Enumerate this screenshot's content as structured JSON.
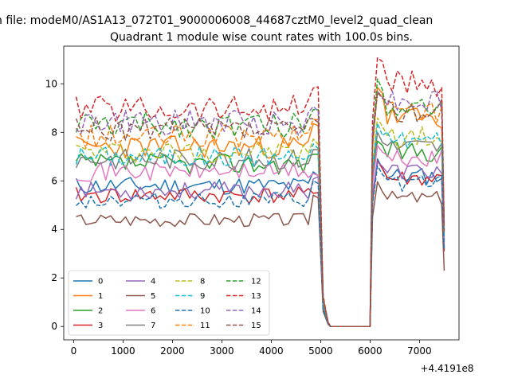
{
  "figure": {
    "suptitle": "n file: modeM0/AS1A13_072T01_9000006008_44687cztM0_level2_quad_clean",
    "title": "Quadrant 1 module wise count rates with 100.0s bins.",
    "x_offset_label": "+4.4191e8"
  },
  "chart_data": {
    "type": "line",
    "title": "Quadrant 1 module wise count rates with 100.0s bins.",
    "xlabel": "",
    "ylabel": "",
    "x_offset": 441910000,
    "xlim": [
      -200,
      7800
    ],
    "ylim": [
      -0.55,
      11.55
    ],
    "x_ticks": [
      0,
      1000,
      2000,
      3000,
      4000,
      5000,
      6000,
      7000
    ],
    "x_tick_labels": [
      "0",
      "1000",
      "2000",
      "3000",
      "4000",
      "5000",
      "6000",
      "7000"
    ],
    "y_ticks": [
      0,
      2,
      4,
      6,
      8,
      10
    ],
    "y_tick_labels": [
      "0",
      "2",
      "4",
      "6",
      "8",
      "10"
    ],
    "grid": false,
    "legend": {
      "placement": "lower-left",
      "columns": 4
    },
    "segments": {
      "seg1_x": [
        50,
        4950
      ],
      "gap_x": [
        5050,
        5150,
        5200,
        5300,
        5400,
        5500,
        5600,
        5700,
        5800,
        5900,
        6000
      ],
      "seg2_x": [
        6050,
        7450
      ],
      "end_x": 7500
    },
    "series": [
      {
        "name": "0",
        "color": "#1f77b4",
        "dash": "solid",
        "base1": 5.8,
        "base2": 6.2,
        "edge1": 6.3,
        "edge2": 6.9,
        "end": 3.3,
        "seed": 11
      },
      {
        "name": "1",
        "color": "#ff7f0e",
        "dash": "solid",
        "base1": 7.4,
        "base2": 8.6,
        "edge1": 8.3,
        "edge2": 9.9,
        "end": 3.5,
        "seed": 23
      },
      {
        "name": "2",
        "color": "#2ca02c",
        "dash": "solid",
        "base1": 6.7,
        "base2": 7.2,
        "edge1": 7.2,
        "edge2": 7.7,
        "end": 3.2,
        "seed": 37
      },
      {
        "name": "3",
        "color": "#d62728",
        "dash": "solid",
        "base1": 5.4,
        "base2": 6.1,
        "edge1": 5.6,
        "edge2": 6.8,
        "end": 3.1,
        "seed": 41
      },
      {
        "name": "4",
        "color": "#9467bd",
        "dash": "solid",
        "base1": 5.6,
        "base2": 6.4,
        "edge1": 6.2,
        "edge2": 6.8,
        "end": 3.4,
        "seed": 53
      },
      {
        "name": "5",
        "color": "#8c564b",
        "dash": "solid",
        "base1": 4.4,
        "base2": 5.3,
        "edge1": 5.4,
        "edge2": 6.0,
        "end": 2.3,
        "seed": 67
      },
      {
        "name": "6",
        "color": "#e377c2",
        "dash": "solid",
        "base1": 6.4,
        "base2": 6.9,
        "edge1": 6.3,
        "edge2": 7.4,
        "end": 3.6,
        "seed": 71
      },
      {
        "name": "7",
        "color": "#7f7f7f",
        "dash": "solid",
        "base1": 6.9,
        "base2": 7.4,
        "edge1": 7.3,
        "edge2": 8.0,
        "end": 3.7,
        "seed": 83
      },
      {
        "name": "8",
        "color": "#bcbd22",
        "dash": "dashed",
        "base1": 7.2,
        "base2": 7.8,
        "edge1": 7.6,
        "edge2": 8.6,
        "end": 3.8,
        "seed": 97
      },
      {
        "name": "9",
        "color": "#17becf",
        "dash": "dashed",
        "base1": 7.0,
        "base2": 7.7,
        "edge1": 7.4,
        "edge2": 8.3,
        "end": 3.6,
        "seed": 101
      },
      {
        "name": "10",
        "color": "#1f77b4",
        "dash": "dashed",
        "base1": 5.2,
        "base2": 5.9,
        "edge1": 5.9,
        "edge2": 6.6,
        "end": 3.2,
        "seed": 113
      },
      {
        "name": "11",
        "color": "#ff7f0e",
        "dash": "dashed",
        "base1": 7.8,
        "base2": 8.9,
        "edge1": 8.6,
        "edge2": 9.7,
        "end": 3.9,
        "seed": 127
      },
      {
        "name": "12",
        "color": "#2ca02c",
        "dash": "dashed",
        "base1": 8.3,
        "base2": 9.2,
        "edge1": 9.0,
        "edge2": 10.1,
        "end": 4.0,
        "seed": 131
      },
      {
        "name": "13",
        "color": "#d62728",
        "dash": "dashed",
        "base1": 9.0,
        "base2": 10.0,
        "edge1": 9.9,
        "edge2": 11.1,
        "end": 4.2,
        "seed": 139
      },
      {
        "name": "14",
        "color": "#9467bd",
        "dash": "dashed",
        "base1": 8.4,
        "base2": 9.3,
        "edge1": 9.0,
        "edge2": 9.8,
        "end": 4.0,
        "seed": 149
      },
      {
        "name": "15",
        "color": "#8c564b",
        "dash": "dashed",
        "base1": 8.1,
        "base2": 8.9,
        "edge1": 8.5,
        "edge2": 9.6,
        "end": 3.9,
        "seed": 157
      }
    ]
  }
}
